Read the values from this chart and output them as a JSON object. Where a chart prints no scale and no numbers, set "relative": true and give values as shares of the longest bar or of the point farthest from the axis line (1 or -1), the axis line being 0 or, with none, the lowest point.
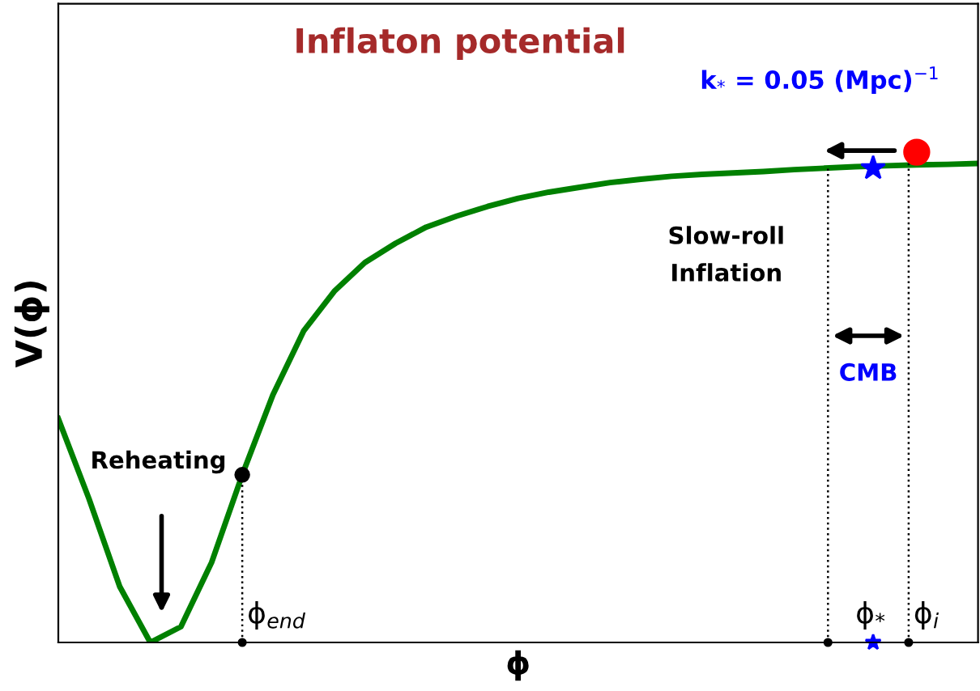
{
  "chart_data": {
    "type": "line",
    "relative": true,
    "title": "Inflaton potential",
    "xlabel": "ϕ",
    "ylabel": "V(ϕ)",
    "categories": [
      null,
      null,
      null,
      null,
      null,
      null,
      null,
      null,
      null,
      null,
      null,
      null,
      null,
      null,
      null,
      null,
      null,
      null,
      null,
      null,
      null,
      null,
      null,
      null,
      null,
      null,
      null,
      null,
      null,
      null,
      null
    ],
    "series": [
      {
        "color": "#008000",
        "values": [
          0.467,
          0.3,
          0.117,
          0.0,
          0.033,
          0.167,
          0.35,
          0.517,
          0.65,
          0.733,
          0.793,
          0.833,
          0.867,
          0.89,
          0.91,
          0.927,
          0.94,
          0.95,
          0.96,
          0.967,
          0.973,
          0.977,
          0.98,
          0.983,
          0.987,
          0.99,
          0.993,
          0.995,
          0.997,
          0.998,
          1.0
        ]
      }
    ],
    "annotations": [
      "k$_{*}$ = 0.05 (Mpc)$^{−1}$",
      "Slow-roll\nInflation",
      "Reheating",
      "CMB",
      "ϕ$_{end}$",
      "ϕ$_{*}$",
      "ϕ$_{i}$"
    ],
    "grid": false,
    "legend": false,
    "marker": "none",
    "line_style": "solid"
  }
}
